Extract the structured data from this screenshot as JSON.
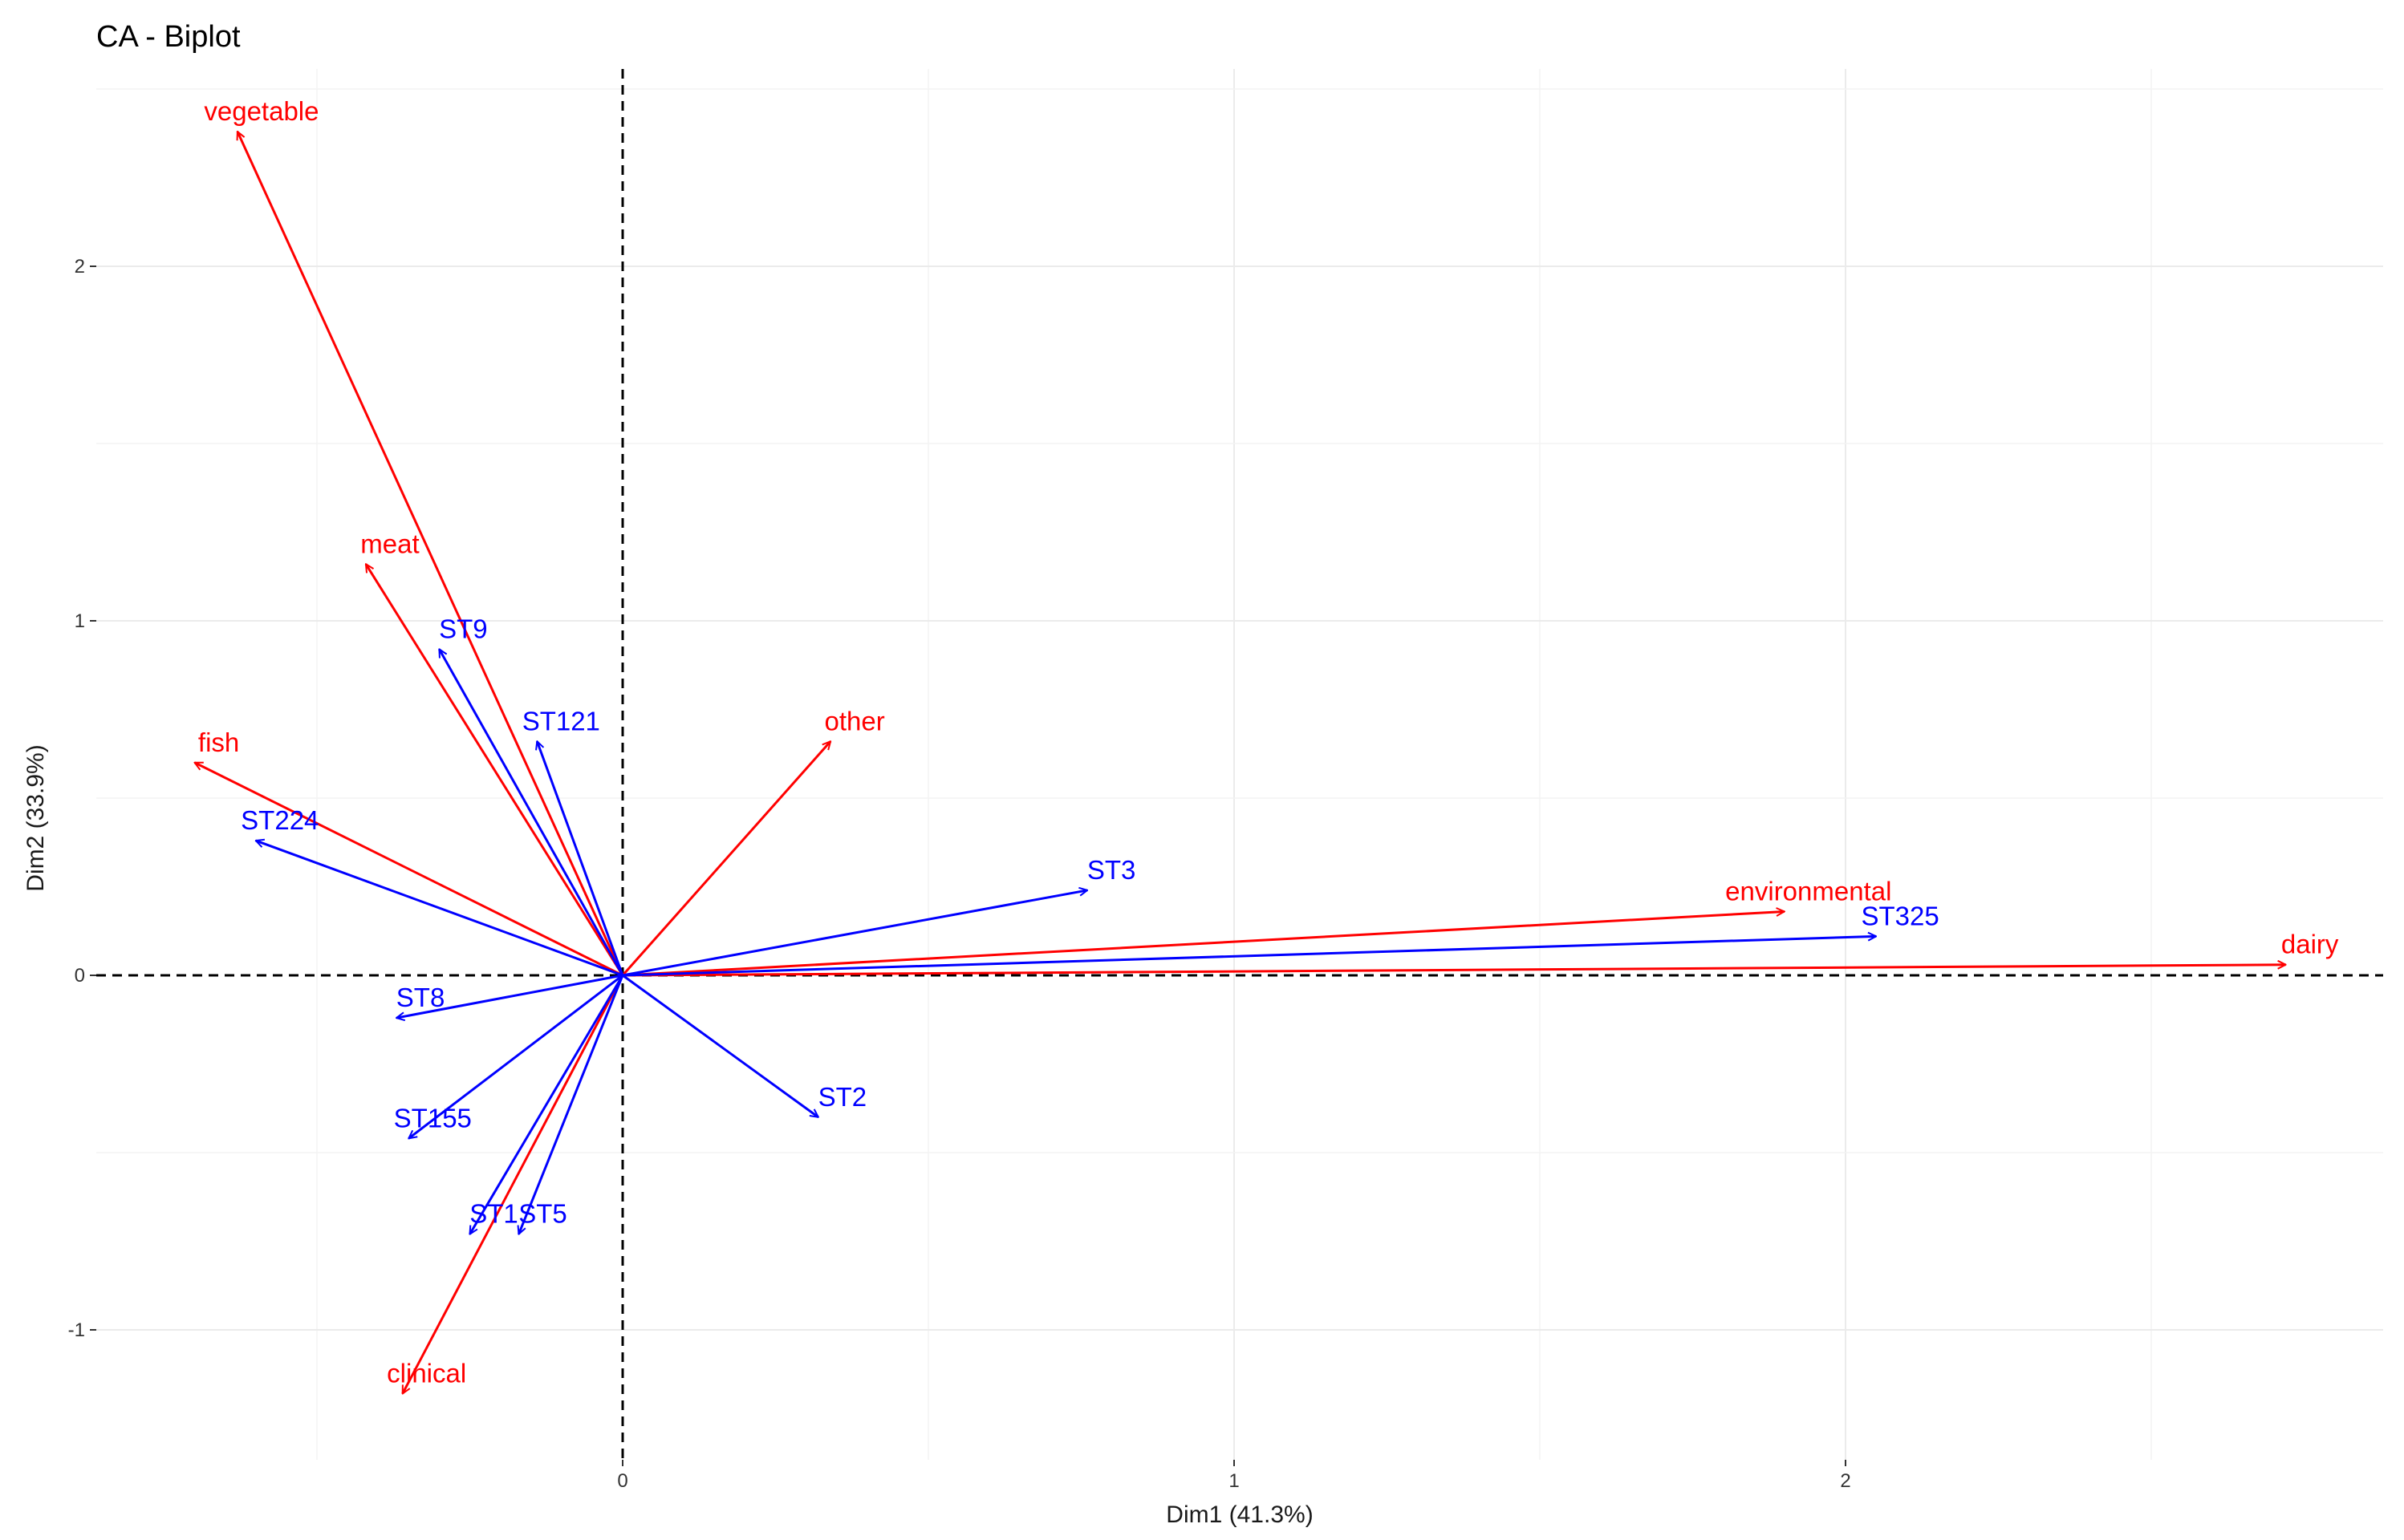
{
  "chart_data": {
    "type": "scatter",
    "subtype": "biplot-vectors",
    "title": "CA - Biplot",
    "xlabel": "Dim1 (41.3%)",
    "ylabel": "Dim2 (33.9%)",
    "xlim": [
      -1.0,
      2.9
    ],
    "ylim": [
      -1.4,
      2.5
    ],
    "x_ticks": [
      0,
      1,
      2
    ],
    "y_ticks": [
      -1,
      0,
      1,
      2
    ],
    "x_tick_labels": [
      "0",
      "1",
      "2"
    ],
    "y_tick_labels": [
      "-1",
      "0",
      "1",
      "2"
    ],
    "grid": true,
    "origin_lines": "dashed",
    "colors": {
      "columns": "#ff0000",
      "rows": "#0000ff"
    },
    "series": [
      {
        "color": "#ff0000",
        "points": [
          {
            "label": "vegetable",
            "x": -0.63,
            "y": 2.38
          },
          {
            "label": "meat",
            "x": -0.42,
            "y": 1.16
          },
          {
            "label": "fish",
            "x": -0.7,
            "y": 0.6
          },
          {
            "label": "other",
            "x": 0.34,
            "y": 0.66
          },
          {
            "label": "environmental",
            "x": 1.9,
            "y": 0.18
          },
          {
            "label": "dairy",
            "x": 2.72,
            "y": 0.03
          },
          {
            "label": "clinical",
            "x": -0.36,
            "y": -1.18
          }
        ]
      },
      {
        "color": "#0000ff",
        "points": [
          {
            "label": "ST9",
            "x": -0.3,
            "y": 0.92
          },
          {
            "label": "ST121",
            "x": -0.14,
            "y": 0.66
          },
          {
            "label": "ST224",
            "x": -0.6,
            "y": 0.38
          },
          {
            "label": "ST3",
            "x": 0.76,
            "y": 0.24
          },
          {
            "label": "ST325",
            "x": 2.05,
            "y": 0.11
          },
          {
            "label": "ST8",
            "x": -0.37,
            "y": -0.12
          },
          {
            "label": "ST2",
            "x": 0.32,
            "y": -0.4
          },
          {
            "label": "ST155",
            "x": -0.35,
            "y": -0.46
          },
          {
            "label": "ST5",
            "x": -0.17,
            "y": -0.73
          },
          {
            "label": "ST1",
            "x": -0.25,
            "y": -0.73
          }
        ]
      }
    ]
  }
}
